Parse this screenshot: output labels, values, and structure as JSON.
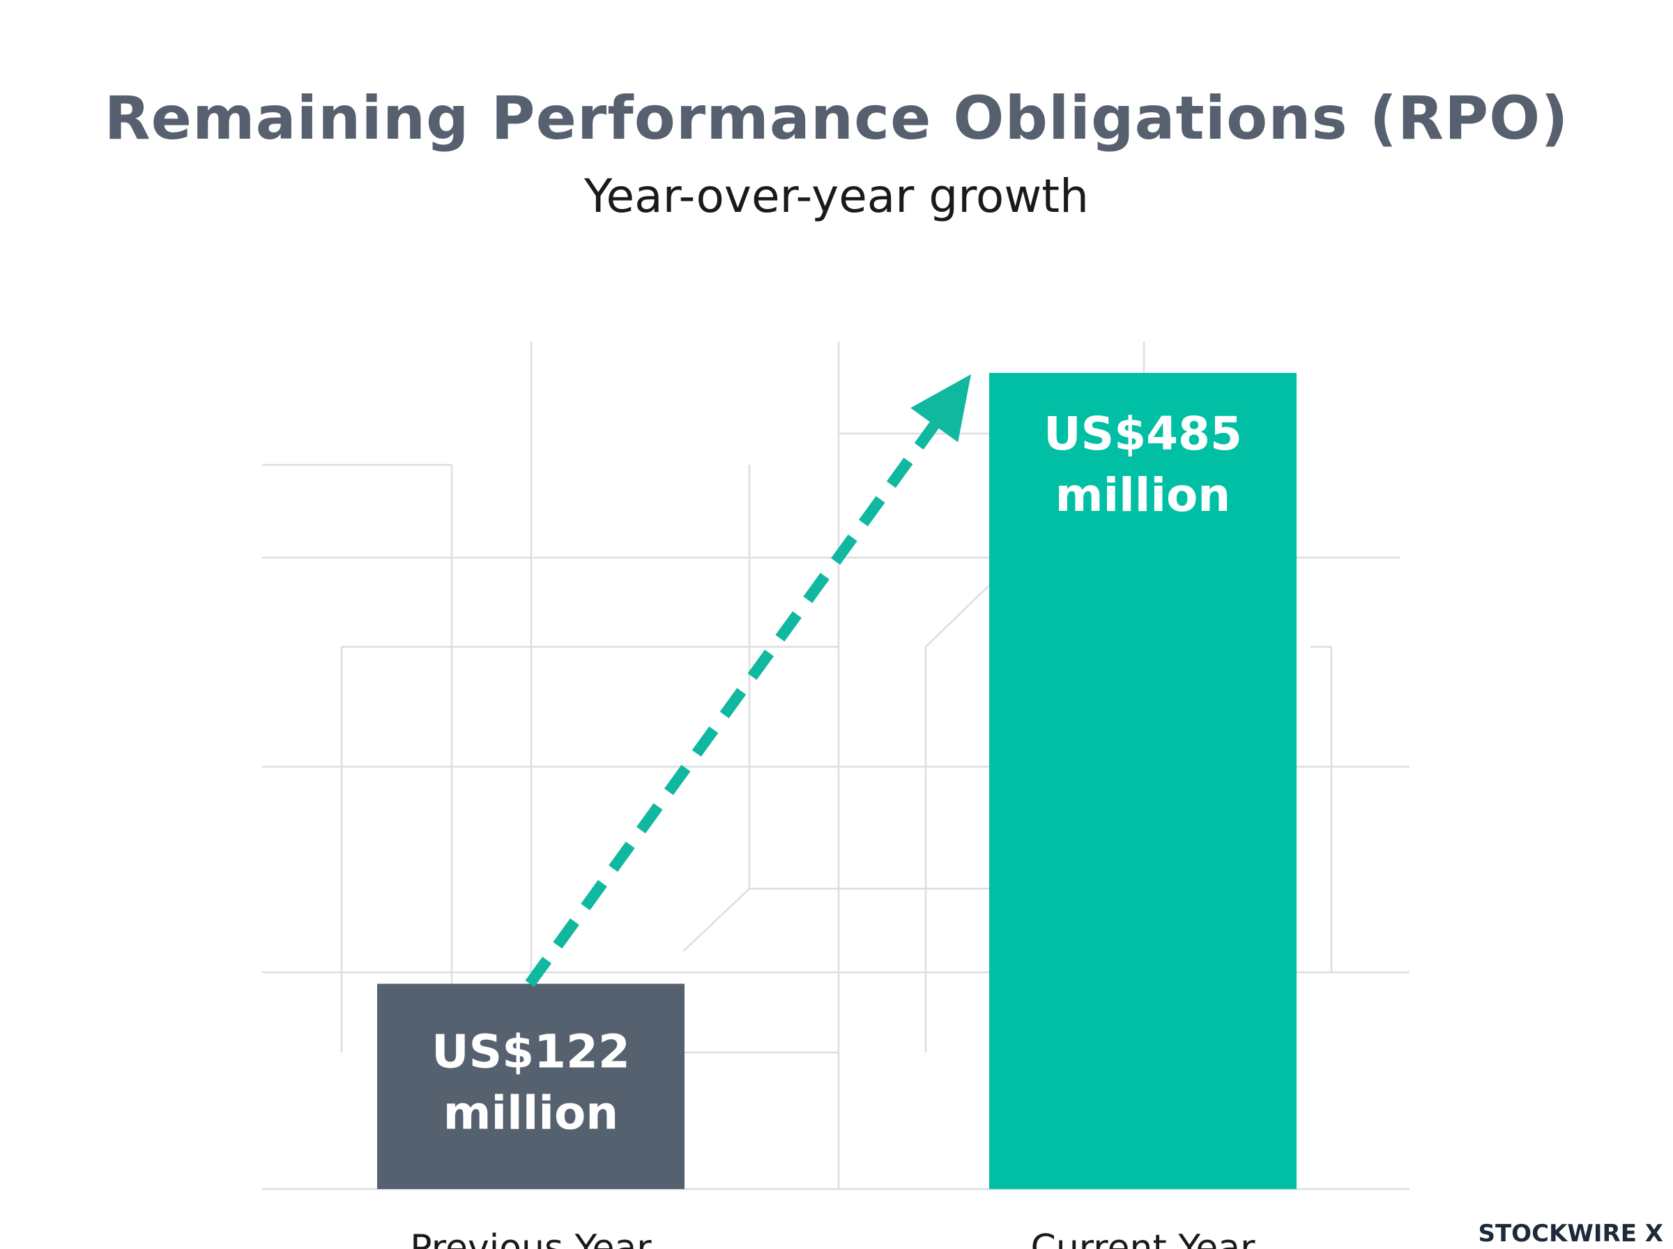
{
  "chart_data": {
    "type": "bar",
    "title": "Remaining Performance Obligations (RPO)",
    "subtitle": "Year-over-year growth",
    "categories": [
      "Previous Year",
      "Current Year"
    ],
    "values": [
      122,
      485
    ],
    "value_labels": [
      [
        "US$122",
        "million"
      ],
      [
        "US$485",
        "million"
      ]
    ],
    "unit": "US$ million",
    "ylim": [
      0,
      510
    ],
    "colors": [
      "#566170",
      "#00bfa5"
    ],
    "arrow_color": "#10b8a0",
    "grid": true,
    "legend": "none"
  },
  "brand": "STOCKWIRE X"
}
